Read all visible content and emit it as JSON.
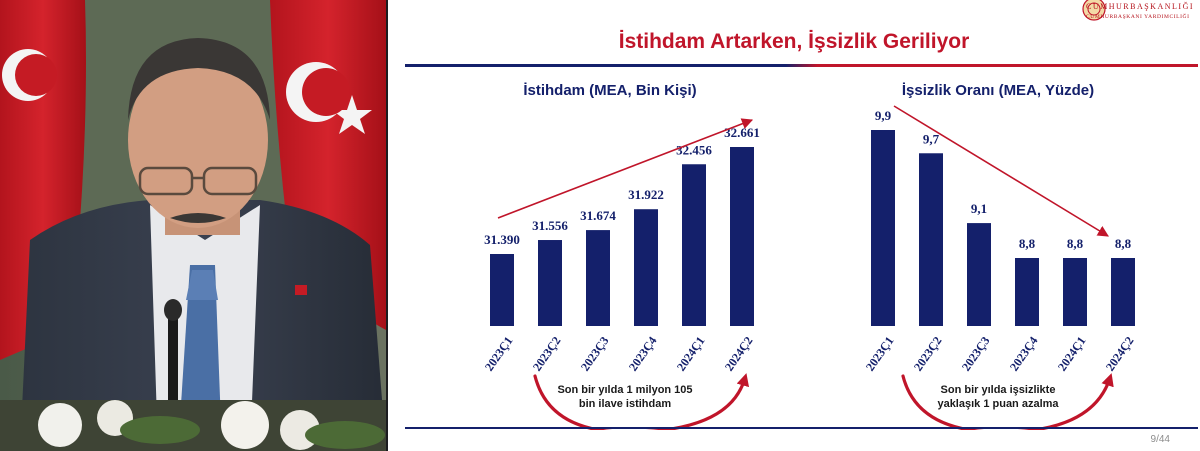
{
  "slide": {
    "title": "İstihdam Artarken, İşsizlik Geriliyor",
    "page": "9/44",
    "logo": {
      "line1": "CUMHURBAŞKANLIĞI",
      "line2": "CUMHURBAŞKANI YARDIMCILIĞI"
    }
  },
  "colors": {
    "bar": "#14206b",
    "accent_red": "#c0152a",
    "text_navy": "#14206b"
  },
  "chart_data": [
    {
      "type": "bar",
      "title": "İstihdam (MEA, Bin Kişi)",
      "categories": [
        "2023Ç1",
        "2023Ç2",
        "2023Ç3",
        "2023Ç4",
        "2024Ç1",
        "2024Ç2"
      ],
      "values": [
        31390,
        31556,
        31674,
        31922,
        32456,
        32661
      ],
      "value_labels": [
        "31.390",
        "31.556",
        "31.674",
        "31.922",
        "32.456",
        "32.661"
      ],
      "trend_arrow": "up",
      "note": [
        "Son bir yılda 1 milyon 105",
        "bin ilave istihdam"
      ]
    },
    {
      "type": "bar",
      "title": "İşsizlik Oranı (MEA, Yüzde)",
      "categories": [
        "2023Ç1",
        "2023Ç2",
        "2023Ç3",
        "2023Ç4",
        "2024Ç1",
        "2024Ç2"
      ],
      "values": [
        9.9,
        9.7,
        9.1,
        8.8,
        8.8,
        8.8
      ],
      "value_labels": [
        "9,9",
        "9,7",
        "9,1",
        "8,8",
        "8,8",
        "8,8"
      ],
      "trend_arrow": "down",
      "note": [
        "Son bir yılda işsizlikte",
        "yaklaşık 1 puan azalma"
      ]
    }
  ]
}
